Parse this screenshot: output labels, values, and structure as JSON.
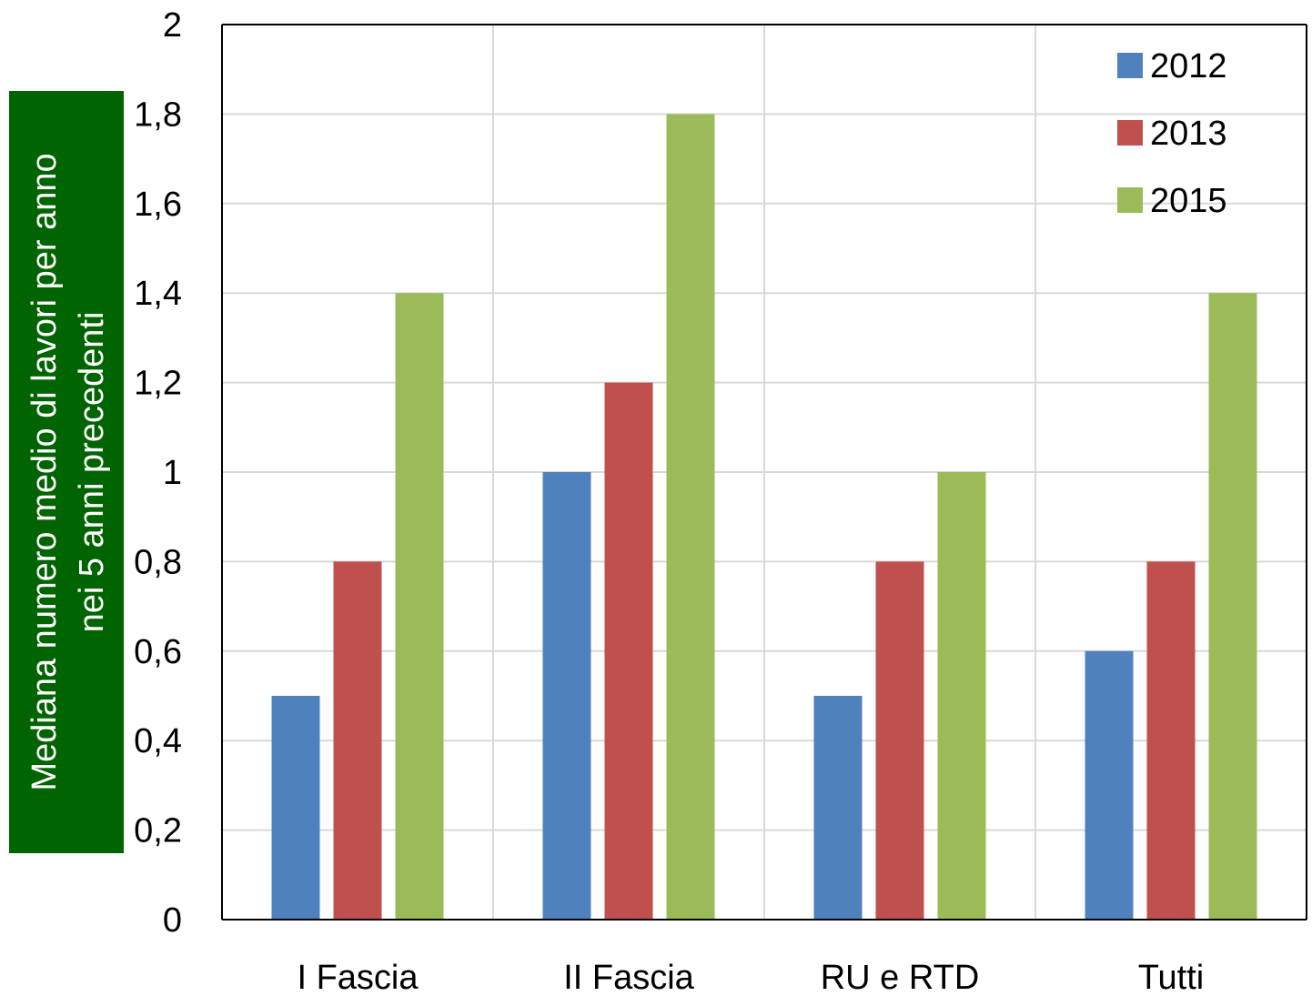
{
  "chart_data": {
    "type": "bar",
    "title": "",
    "xlabel": "",
    "ylabel": [
      "Mediana numero medio di lavori per anno",
      "nei 5 anni precedenti"
    ],
    "ylabel_background": "#006400",
    "categories": [
      "I Fascia",
      "II Fascia",
      "RU e RTD",
      "Tutti"
    ],
    "series": [
      {
        "name": "2012",
        "color": "#4f81bd",
        "values": [
          0.5,
          1.0,
          0.5,
          0.6
        ]
      },
      {
        "name": "2013",
        "color": "#c0504d",
        "values": [
          0.8,
          1.2,
          0.8,
          0.8
        ]
      },
      {
        "name": "2015",
        "color": "#9bbb59",
        "values": [
          1.4,
          1.8,
          1.0,
          1.4
        ]
      }
    ],
    "ylim": [
      0,
      2
    ],
    "y_ticks": [
      0,
      0.2,
      0.4,
      0.6,
      0.8,
      1,
      1.2,
      1.4,
      1.6,
      1.8,
      2
    ],
    "y_tick_labels": [
      "0",
      "0,2",
      "0,4",
      "0,6",
      "0,8",
      "1",
      "1,2",
      "1,4",
      "1,6",
      "1,8",
      "2"
    ],
    "grid": true,
    "legend_position": "top-right"
  }
}
